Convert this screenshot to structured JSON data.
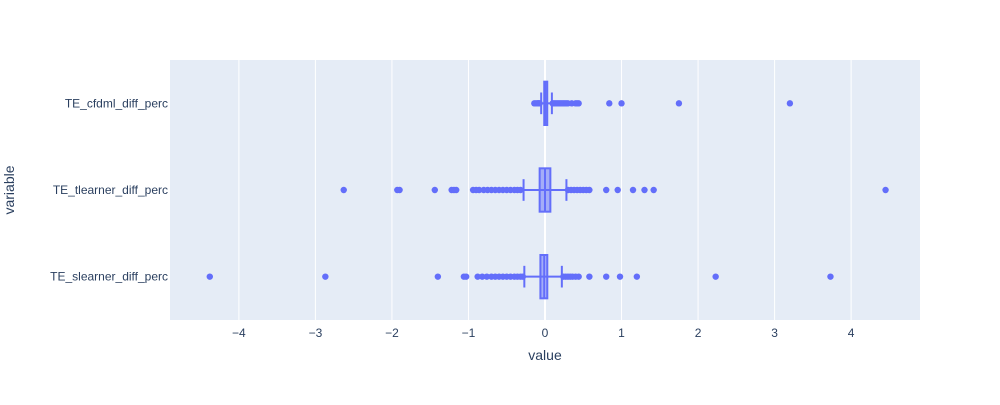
{
  "chart_data": {
    "type": "box",
    "orientation": "horizontal",
    "title": "",
    "xlabel": "value",
    "ylabel": "variable",
    "xlim": [
      -4.9,
      4.9
    ],
    "x_ticks": [
      -4,
      -3,
      -2,
      -1,
      0,
      1,
      2,
      3,
      4
    ],
    "x_tick_labels": [
      "−4",
      "−3",
      "−2",
      "−1",
      "0",
      "1",
      "2",
      "3",
      "4"
    ],
    "grid": true,
    "colors": {
      "marker": "#636efa",
      "plot_bg": "#e5ecf6",
      "grid": "#ffffff",
      "text": "#2a3f5f"
    },
    "categories": [
      "TE_cfdml_diff_perc",
      "TE_tlearner_diff_perc",
      "TE_slearner_diff_perc"
    ],
    "series": [
      {
        "category": "TE_cfdml_diff_perc",
        "whisker_low": -0.05,
        "q1": -0.01,
        "median": 0.005,
        "q3": 0.02,
        "whisker_high": 0.09,
        "outliers": [
          -0.14,
          -0.12,
          -0.1,
          -0.09,
          -0.08,
          -0.07,
          0.1,
          0.12,
          0.14,
          0.16,
          0.18,
          0.2,
          0.22,
          0.24,
          0.26,
          0.28,
          0.3,
          0.35,
          0.4,
          0.42,
          0.44,
          0.84,
          1.0,
          1.75,
          3.2
        ]
      },
      {
        "category": "TE_tlearner_diff_perc",
        "whisker_low": -0.28,
        "q1": -0.07,
        "median": 0.0,
        "q3": 0.07,
        "whisker_high": 0.28,
        "outliers": [
          -2.63,
          -1.93,
          -1.9,
          -1.44,
          -1.22,
          -1.19,
          -1.16,
          -0.94,
          -0.9,
          -0.86,
          -0.8,
          -0.75,
          -0.7,
          -0.65,
          -0.6,
          -0.55,
          -0.5,
          -0.45,
          -0.4,
          -0.36,
          -0.32,
          0.3,
          0.34,
          0.38,
          0.42,
          0.46,
          0.5,
          0.54,
          0.58,
          0.8,
          0.95,
          1.15,
          1.3,
          1.42,
          4.45
        ]
      },
      {
        "category": "TE_slearner_diff_perc",
        "whisker_low": -0.27,
        "q1": -0.06,
        "median": -0.01,
        "q3": 0.03,
        "whisker_high": 0.22,
        "outliers": [
          -4.38,
          -2.87,
          -1.4,
          -1.06,
          -1.03,
          -0.88,
          -0.82,
          -0.76,
          -0.7,
          -0.65,
          -0.6,
          -0.55,
          -0.5,
          -0.45,
          -0.4,
          -0.36,
          -0.32,
          -0.29,
          0.24,
          0.27,
          0.3,
          0.33,
          0.36,
          0.4,
          0.44,
          0.58,
          0.8,
          0.98,
          1.2,
          2.23,
          3.73
        ]
      }
    ]
  }
}
